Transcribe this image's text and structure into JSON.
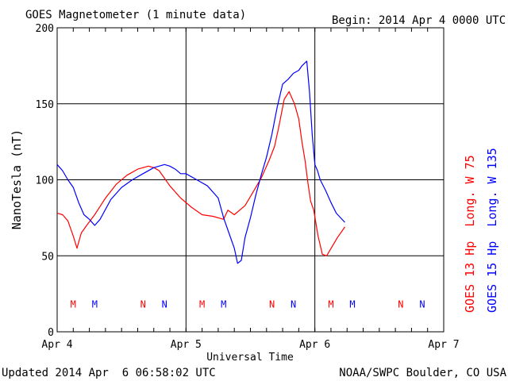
{
  "header": {
    "title": "GOES Magnetometer (1 minute data)",
    "begin_label": "Begin:",
    "begin_value": "2014 Apr 4 0000 UTC"
  },
  "footer": {
    "updated": "Updated 2014 Apr  6 06:58:02 UTC",
    "credit": "NOAA/SWPC Boulder, CO USA"
  },
  "colors": {
    "goes13": "#ff0000",
    "goes15": "#0000ff",
    "axis": "#000000"
  },
  "chart_data": {
    "type": "line",
    "title": "GOES Magnetometer (1 minute data)",
    "xlabel": "Universal Time",
    "ylabel": "NanoTesla (nT)",
    "xlim": [
      0,
      72
    ],
    "x_unit": "hours since 2014 Apr 4 0000 UTC",
    "ylim": [
      0,
      200
    ],
    "yticks": [
      0,
      50,
      100,
      150,
      200
    ],
    "xticks": [
      {
        "value": 0,
        "label": "Apr 4"
      },
      {
        "value": 24,
        "label": "Apr 5"
      },
      {
        "value": 48,
        "label": "Apr 6"
      },
      {
        "value": 72,
        "label": "Apr 7"
      }
    ],
    "grid": true,
    "series": [
      {
        "name": "GOES 13 Hp  Long. W 75",
        "color": "#ff0000",
        "x": [
          0,
          1,
          2,
          3,
          3.7,
          4.5,
          5.5,
          7,
          9,
          11,
          13,
          15,
          17,
          18,
          19,
          20,
          21,
          23,
          25,
          27,
          29,
          31,
          31.8,
          33,
          35,
          36.5,
          38,
          39.5,
          40.5,
          41.3,
          42.3,
          43.2,
          44.2,
          45,
          45.6,
          46.2,
          46.7,
          47.2,
          47.8,
          48.6,
          49.4,
          50.2,
          51.2,
          52.2,
          53.6
        ],
        "values": [
          78,
          77,
          73,
          63,
          55,
          65,
          70,
          77,
          88,
          97,
          103,
          107,
          109,
          108,
          106,
          101,
          96,
          88,
          82,
          77,
          76,
          74,
          80,
          77,
          83,
          92,
          101,
          113,
          122,
          135,
          153,
          158,
          150,
          140,
          125,
          112,
          98,
          86,
          80,
          63,
          51,
          50,
          56,
          62,
          69
        ]
      },
      {
        "name": "GOES 15 Hp  Long. W 135",
        "color": "#0000ff",
        "x": [
          0,
          1,
          2,
          3,
          4,
          5,
          6,
          7,
          8,
          10,
          12,
          14,
          16,
          18,
          20,
          21,
          22,
          23,
          24,
          26,
          28,
          30,
          31,
          32,
          33,
          33.6,
          34.3,
          35,
          36,
          37,
          38,
          39,
          40,
          41,
          42,
          43,
          44,
          45,
          45.6,
          46.5,
          47,
          47.5,
          48,
          48.5,
          49,
          50,
          51,
          52,
          53.6
        ],
        "values": [
          110,
          106,
          100,
          95,
          85,
          77,
          74,
          70,
          74,
          87,
          95,
          100,
          104,
          108,
          110,
          109,
          107,
          104,
          104,
          100,
          96,
          88,
          75,
          65,
          55,
          45,
          47,
          62,
          75,
          90,
          103,
          115,
          130,
          148,
          163,
          166,
          170,
          172,
          175,
          178,
          158,
          130,
          110,
          106,
          100,
          93,
          85,
          78,
          72
        ]
      }
    ],
    "markers": {
      "goes13": {
        "label": "M N",
        "letters": [
          {
            "x": 3,
            "text": "M"
          },
          {
            "x": 16,
            "text": "N"
          },
          {
            "x": 27,
            "text": "M"
          },
          {
            "x": 40,
            "text": "N"
          },
          {
            "x": 51,
            "text": "M"
          },
          {
            "x": 64,
            "text": "N"
          }
        ]
      },
      "goes15": {
        "letters": [
          {
            "x": 7,
            "text": "M"
          },
          {
            "x": 20,
            "text": "N"
          },
          {
            "x": 31,
            "text": "M"
          },
          {
            "x": 44,
            "text": "N"
          },
          {
            "x": 55,
            "text": "M"
          },
          {
            "x": 68,
            "text": "N"
          }
        ]
      }
    }
  }
}
